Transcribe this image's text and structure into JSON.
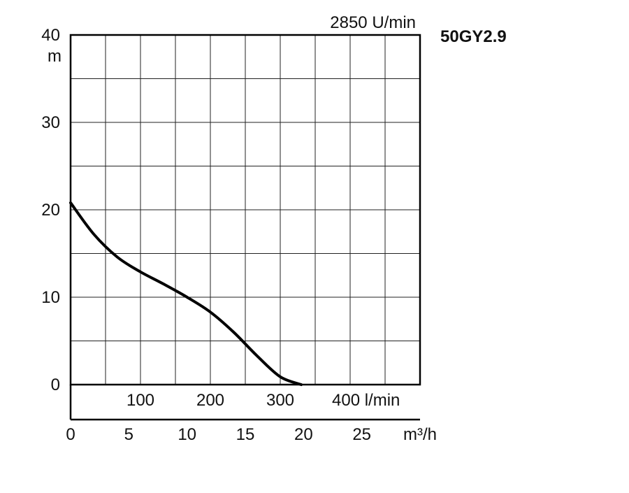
{
  "chart_data": {
    "type": "line",
    "title": "50GY2.9",
    "subtitle": "2850 U/min",
    "ylabel": "m",
    "xlabel_secondary": "l/min",
    "xlabel_primary": "m³/h",
    "ylim": [
      0,
      40
    ],
    "xlim_m3h": [
      0,
      30
    ],
    "grid": true,
    "y_ticks": [
      {
        "value": 0,
        "label": "0"
      },
      {
        "value": 10,
        "label": "10"
      },
      {
        "value": 20,
        "label": "20"
      },
      {
        "value": 30,
        "label": "30"
      },
      {
        "value": 40,
        "label": "40"
      }
    ],
    "x_ticks_m3h": [
      {
        "value": 0,
        "label": "0"
      },
      {
        "value": 5,
        "label": "5"
      },
      {
        "value": 10,
        "label": "10"
      },
      {
        "value": 15,
        "label": "15"
      },
      {
        "value": 20,
        "label": "20"
      },
      {
        "value": 25,
        "label": "25"
      }
    ],
    "x_ticks_lmin": [
      {
        "value": 100,
        "label": "100"
      },
      {
        "value": 200,
        "label": "200"
      },
      {
        "value": 300,
        "label": "300"
      },
      {
        "value": 400,
        "label": "400 l/min"
      }
    ],
    "series": [
      {
        "x": [
          0,
          2,
          4,
          6,
          8,
          10,
          12,
          14,
          16,
          18,
          19.8
        ],
        "y": [
          20.8,
          17.2,
          14.6,
          12.9,
          11.5,
          10.0,
          8.3,
          6.0,
          3.3,
          0.9,
          0
        ]
      }
    ]
  }
}
